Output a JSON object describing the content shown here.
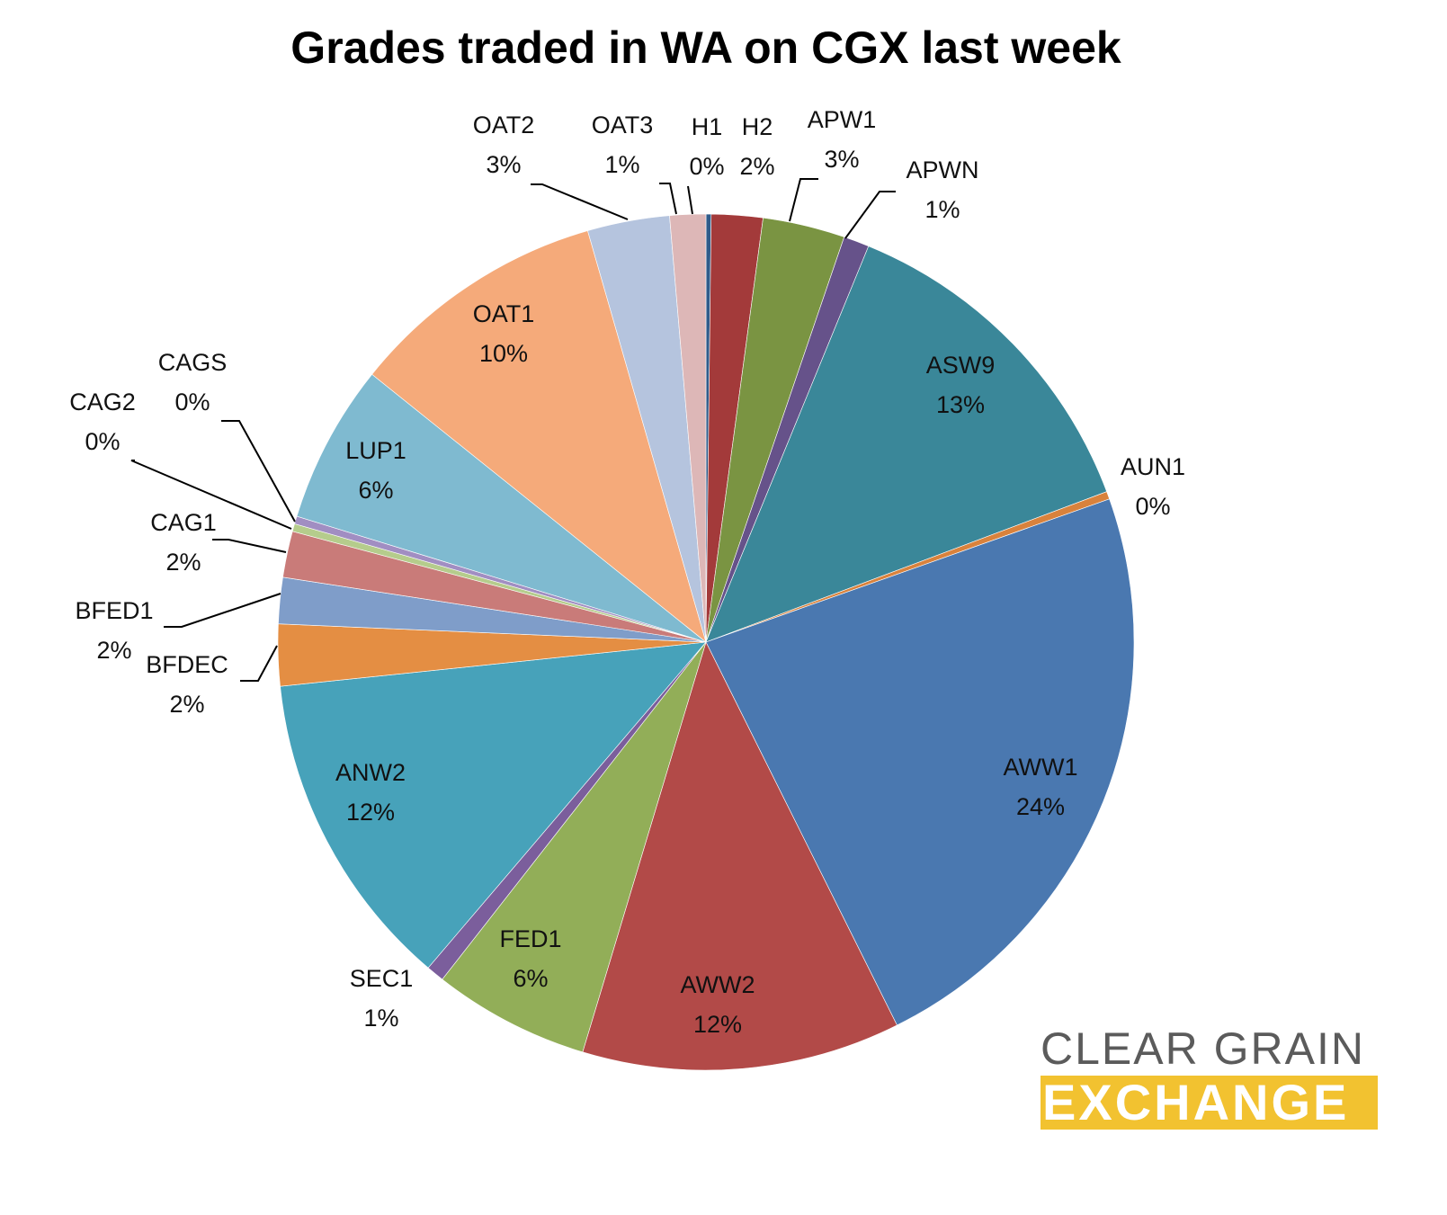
{
  "chart_data": {
    "type": "pie",
    "title": "Grades traded in WA on CGX last week",
    "slices": [
      {
        "label": "H1",
        "pct_label": "0%",
        "value": 0.2,
        "color": "#2f5b8a"
      },
      {
        "label": "H2",
        "pct_label": "2%",
        "value": 2.0,
        "color": "#a33a3a"
      },
      {
        "label": "APW1",
        "pct_label": "3%",
        "value": 3.2,
        "color": "#7a9442"
      },
      {
        "label": "APWN",
        "pct_label": "1%",
        "value": 1.0,
        "color": "#66528a"
      },
      {
        "label": "ASW9",
        "pct_label": "13%",
        "value": 13.5,
        "color": "#3a8799"
      },
      {
        "label": "AUN1",
        "pct_label": "0%",
        "value": 0.3,
        "color": "#d9823c"
      },
      {
        "label": "AWW1",
        "pct_label": "24%",
        "value": 23.8,
        "color": "#4a78b0"
      },
      {
        "label": "AWW2",
        "pct_label": "12%",
        "value": 12.4,
        "color": "#b24a48"
      },
      {
        "label": "FED1",
        "pct_label": "6%",
        "value": 6.1,
        "color": "#92ae58"
      },
      {
        "label": "SEC1",
        "pct_label": "1%",
        "value": 0.7,
        "color": "#7b5e9c"
      },
      {
        "label": "ANW2",
        "pct_label": "12%",
        "value": 12.5,
        "color": "#47a2ba"
      },
      {
        "label": "BFDEC",
        "pct_label": "2%",
        "value": 2.4,
        "color": "#e48e43"
      },
      {
        "label": "BFED1",
        "pct_label": "2%",
        "value": 1.8,
        "color": "#7f9dc9"
      },
      {
        "label": "CAG1",
        "pct_label": "2%",
        "value": 1.8,
        "color": "#c97b79"
      },
      {
        "label": "CAG2",
        "pct_label": "0%",
        "value": 0.3,
        "color": "#b5cc8c"
      },
      {
        "label": "CAGS",
        "pct_label": "0%",
        "value": 0.3,
        "color": "#a18ec2"
      },
      {
        "label": "LUP1",
        "pct_label": "6%",
        "value": 6.2,
        "color": "#7fbad0"
      },
      {
        "label": "OAT1",
        "pct_label": "10%",
        "value": 10.1,
        "color": "#f5aa7a"
      },
      {
        "label": "OAT2",
        "pct_label": "3%",
        "value": 3.2,
        "color": "#b5c4de"
      },
      {
        "label": "OAT3",
        "pct_label": "1%",
        "value": 1.4,
        "color": "#ddb7b7"
      }
    ]
  },
  "logo": {
    "line1": "CLEAR GRAIN",
    "line2": "EXCHANGE",
    "text_color": "#5b5b5b",
    "band_color": "#f2c230"
  }
}
